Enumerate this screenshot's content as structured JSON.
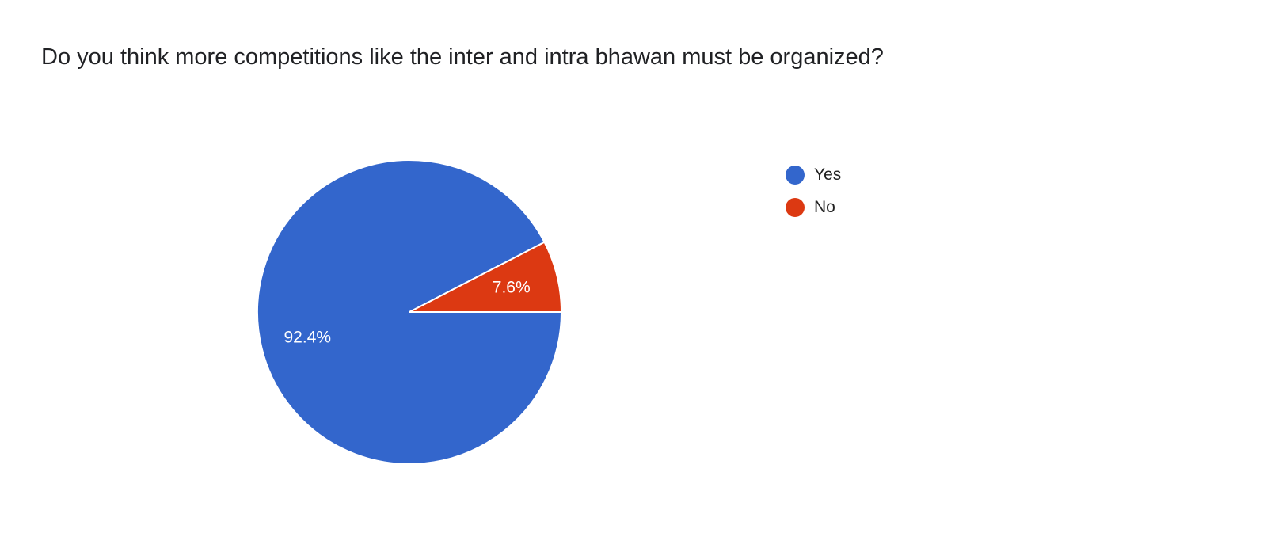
{
  "chart_data": {
    "type": "pie",
    "title": "Do you think more competitions like the inter and intra bhawan must be organized?",
    "categories": [
      "Yes",
      "No"
    ],
    "values": [
      92.4,
      7.6
    ],
    "labels": [
      "92.4%",
      "7.6%"
    ],
    "colors": [
      "#3366cc",
      "#dc3912"
    ],
    "legend_position": "right"
  }
}
